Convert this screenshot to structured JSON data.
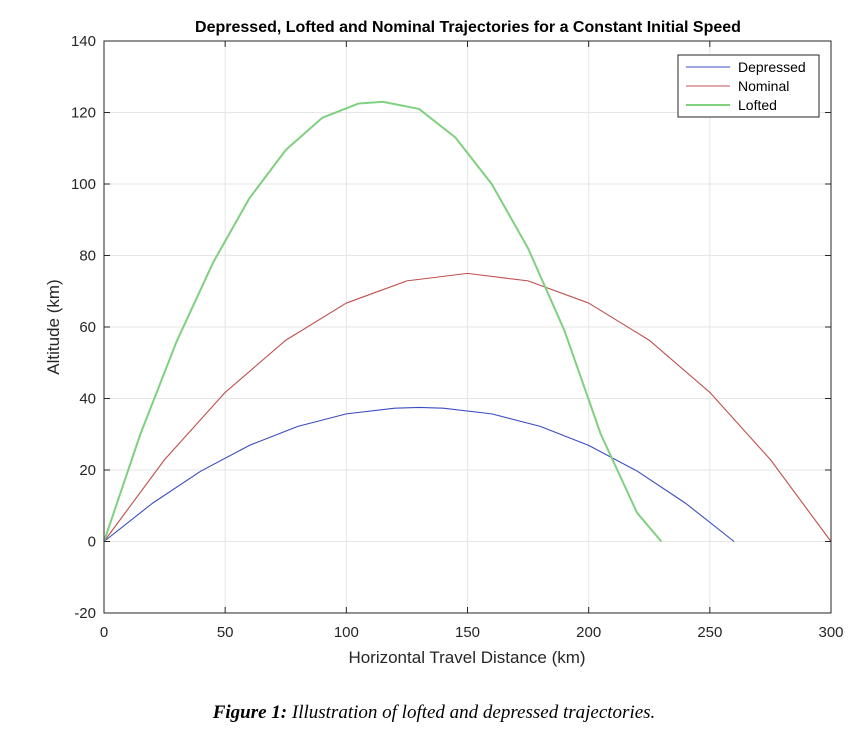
{
  "chart_data": {
    "type": "line",
    "title": "Depressed, Lofted and Nominal Trajectories for a Constant Initial Speed",
    "xlabel": "Horizontal Travel Distance (km)",
    "ylabel": "Altitude (km)",
    "xlim": [
      0,
      300
    ],
    "ylim": [
      -20,
      140
    ],
    "xticks": [
      0,
      50,
      100,
      150,
      200,
      250,
      300
    ],
    "yticks": [
      -20,
      0,
      20,
      40,
      60,
      80,
      100,
      120,
      140
    ],
    "grid": true,
    "legend_position": "top-right",
    "series": [
      {
        "name": "Depressed",
        "color": "#3b4cc0",
        "x": [
          0,
          20,
          40,
          60,
          80,
          100,
          120,
          130,
          140,
          160,
          180,
          200,
          220,
          240,
          260
        ],
        "y": [
          0,
          10.7,
          19.7,
          26.9,
          32.2,
          35.7,
          37.3,
          37.5,
          37.3,
          35.7,
          32.2,
          26.9,
          19.7,
          10.7,
          0
        ]
      },
      {
        "name": "Nominal",
        "color": "#c0504d",
        "x": [
          0,
          25,
          50,
          75,
          100,
          125,
          150,
          175,
          200,
          225,
          250,
          275,
          300
        ],
        "y": [
          0,
          22.9,
          41.7,
          56.3,
          66.7,
          72.9,
          75.0,
          72.9,
          66.7,
          56.3,
          41.7,
          22.9,
          0
        ]
      },
      {
        "name": "Lofted",
        "color": "#7fd07f",
        "x": [
          0,
          15,
          30,
          45,
          60,
          75,
          90,
          105,
          115,
          130,
          145,
          160,
          175,
          190,
          205,
          220,
          230
        ],
        "y": [
          0,
          30.0,
          56.0,
          78.0,
          96.0,
          109.5,
          118.5,
          122.5,
          123.0,
          121.0,
          113.0,
          100.0,
          82.0,
          59.0,
          30.0,
          8.0,
          0
        ]
      }
    ]
  },
  "caption": {
    "lead": "Figure 1:",
    "text": " Illustration of lofted and depressed trajectories."
  }
}
